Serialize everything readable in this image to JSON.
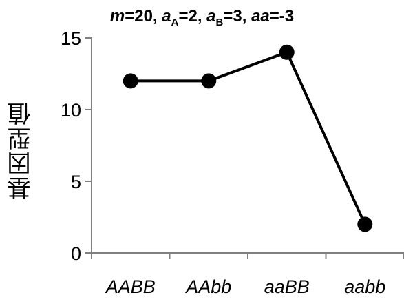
{
  "chart_data": {
    "type": "line",
    "title_parts": {
      "m_sym": "m",
      "m_val": "=20, ",
      "aA_sym": "a",
      "aA_sub": "A",
      "aA_val": "=2, ",
      "aB_sym": "a",
      "aB_sub": "B",
      "aB_val": "=3, ",
      "aa_sym": "aa",
      "aa_val": "=-3"
    },
    "ylabel": "基因型值",
    "xlabel": "",
    "categories": [
      "AABB",
      "AAbb",
      "aaBB",
      "aabb"
    ],
    "values": [
      12,
      12,
      14,
      2
    ],
    "ylim": [
      0,
      15
    ],
    "yticks": [
      0,
      5,
      10,
      15
    ],
    "grid": false,
    "line_color": "#000000",
    "marker_color": "#000000"
  }
}
